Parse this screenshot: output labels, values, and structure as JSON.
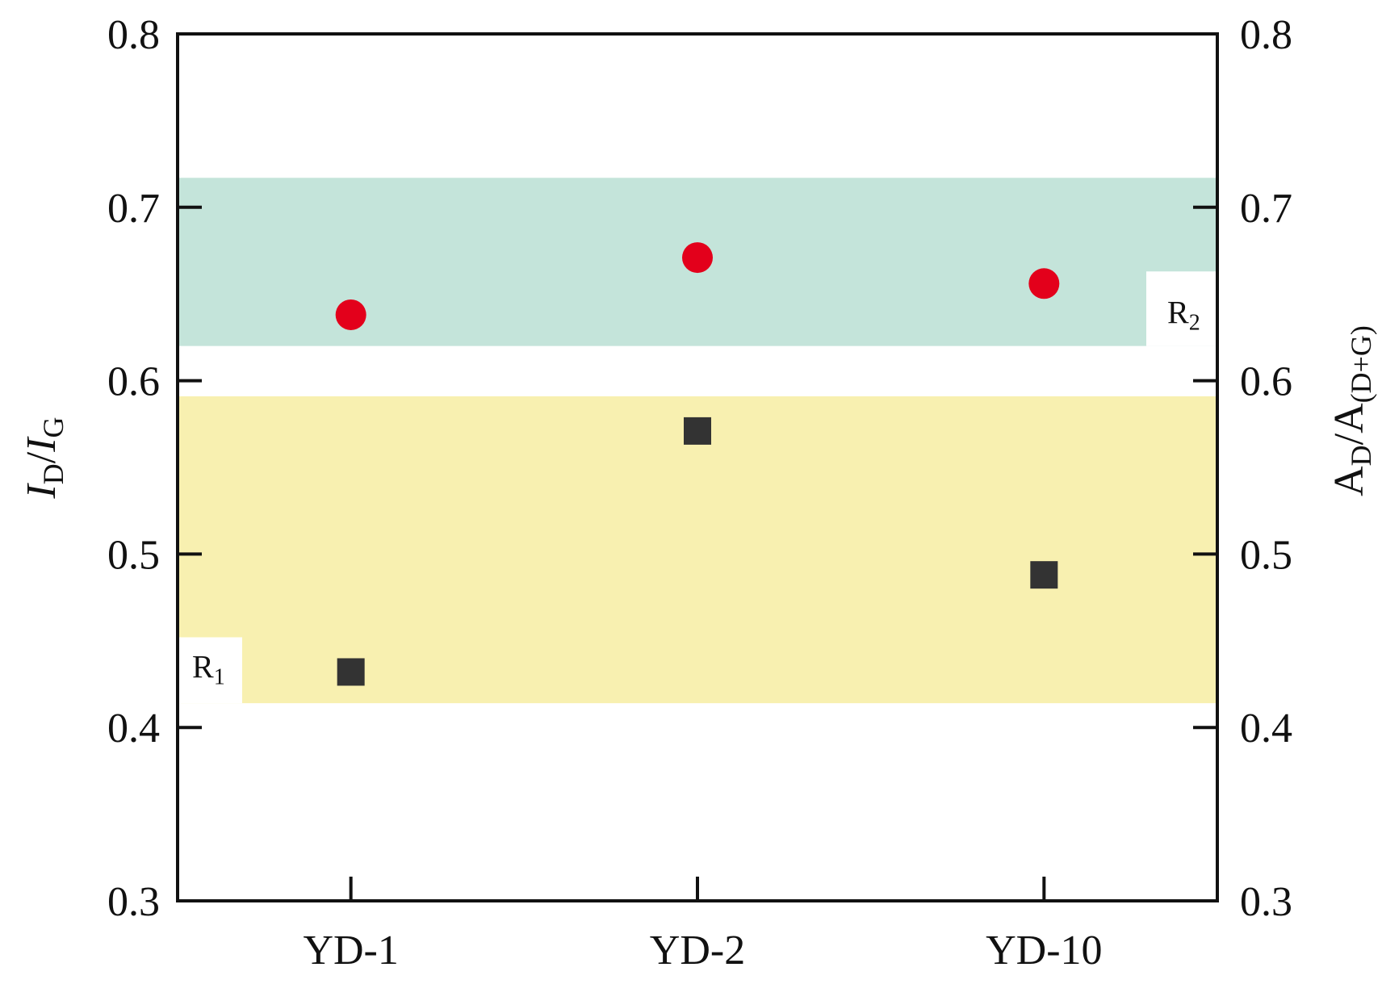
{
  "chart_data": {
    "type": "scatter",
    "categories": [
      "YD-1",
      "YD-2",
      "YD-10"
    ],
    "y_left": {
      "label_main": "I",
      "label_sub1": "D",
      "label_sep": "/",
      "label_main2": "I",
      "label_sub2": "G",
      "ylim": [
        0.3,
        0.8
      ],
      "ticks": [
        "0.3",
        "0.4",
        "0.5",
        "0.6",
        "0.7",
        "0.8"
      ]
    },
    "y_right": {
      "label_main": "A",
      "label_sub1": "D",
      "label_sep": "/",
      "label_main2": "A",
      "label_sub2": "(D+G)",
      "ylim": [
        0.3,
        0.8
      ],
      "ticks": [
        "0.3",
        "0.4",
        "0.5",
        "0.6",
        "0.7",
        "0.8"
      ]
    },
    "series": [
      {
        "name": "ID/IG",
        "marker": "square",
        "color": "#333333",
        "values": [
          0.432,
          0.571,
          0.488
        ]
      },
      {
        "name": "AD/A(D+G)",
        "marker": "circle",
        "color": "#e3001b",
        "values": [
          0.638,
          0.671,
          0.656
        ]
      }
    ],
    "bands": [
      {
        "name": "R1",
        "label_main": "R",
        "label_sub": "1",
        "range": [
          0.414,
          0.591
        ],
        "color": "#f8f0b0"
      },
      {
        "name": "R2",
        "label_main": "R",
        "label_sub": "2",
        "range": [
          0.62,
          0.717
        ],
        "color": "#c4e4da"
      }
    ]
  }
}
